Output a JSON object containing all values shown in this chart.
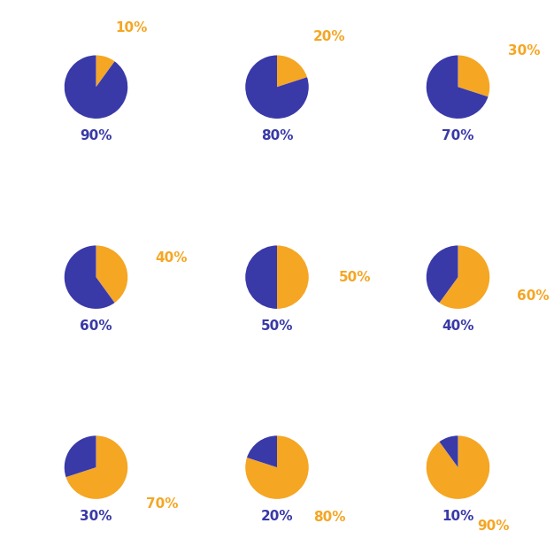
{
  "charts": [
    {
      "orange": 10,
      "blue": 90
    },
    {
      "orange": 20,
      "blue": 80
    },
    {
      "orange": 30,
      "blue": 70
    },
    {
      "orange": 40,
      "blue": 60
    },
    {
      "orange": 50,
      "blue": 50
    },
    {
      "orange": 60,
      "blue": 40
    },
    {
      "orange": 70,
      "blue": 30
    },
    {
      "orange": 80,
      "blue": 20
    },
    {
      "orange": 90,
      "blue": 10
    }
  ],
  "orange_color": "#F5A623",
  "blue_color": "#3939A8",
  "bg_color": "#FFFFFF",
  "orange_label_color": "#F5A623",
  "blue_label_color": "#3939A8",
  "label_fontsize": 11,
  "startangle": 90,
  "figsize": [
    6.26,
    6.26
  ],
  "dpi": 100
}
